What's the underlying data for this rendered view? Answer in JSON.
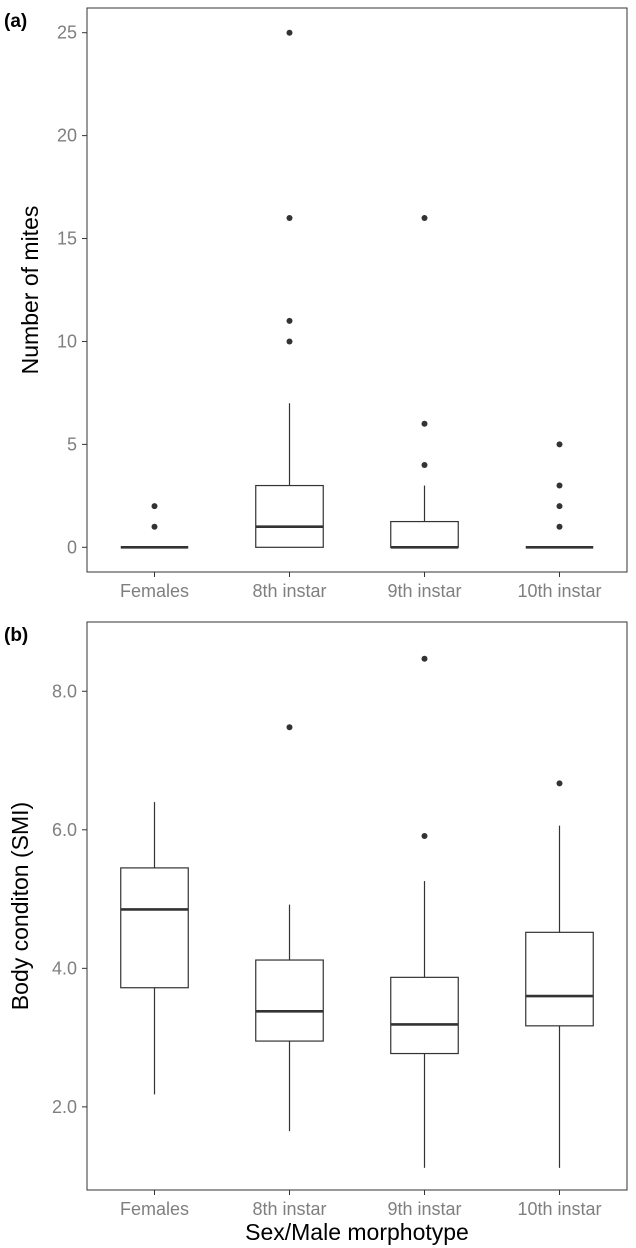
{
  "chart_data": [
    {
      "panel": "(a)",
      "type": "box",
      "ylabel": "Number of mites",
      "xlabel": "",
      "categories": [
        "Females",
        "8th instar",
        "9th instar",
        "10th instar"
      ],
      "ylim": [
        -1.2,
        26.2
      ],
      "yticks": [
        0,
        5,
        10,
        15,
        20,
        25
      ],
      "ytick_labels": [
        "0",
        "5",
        "10",
        "15",
        "20",
        "25"
      ],
      "boxes": [
        {
          "category": "Females",
          "q1": 0,
          "median": 0,
          "q3": 0,
          "whisker_low": 0,
          "whisker_high": 0,
          "outliers": [
            1,
            2
          ]
        },
        {
          "category": "8th instar",
          "q1": 0,
          "median": 1,
          "q3": 3,
          "whisker_low": 0,
          "whisker_high": 7,
          "outliers": [
            10,
            11,
            16,
            25
          ]
        },
        {
          "category": "9th instar",
          "q1": 0,
          "median": 0,
          "q3": 1.25,
          "whisker_low": 0,
          "whisker_high": 3,
          "outliers": [
            4,
            6,
            16
          ]
        },
        {
          "category": "10th instar",
          "q1": 0,
          "median": 0,
          "q3": 0,
          "whisker_low": 0,
          "whisker_high": 0,
          "outliers": [
            1,
            2,
            3,
            5
          ]
        }
      ],
      "grid": false
    },
    {
      "panel": "(b)",
      "type": "box",
      "ylabel": "Body conditon (SMI)",
      "xlabel": "Sex/Male morphotype",
      "categories": [
        "Females",
        "8th instar",
        "9th instar",
        "10th instar"
      ],
      "ylim": [
        0.8,
        9.0
      ],
      "yticks": [
        2,
        4,
        6,
        8
      ],
      "ytick_labels": [
        "2.0",
        "4.0",
        "6.0",
        "8.0"
      ],
      "boxes": [
        {
          "category": "Females",
          "q1": 3.72,
          "median": 4.85,
          "q3": 5.45,
          "whisker_low": 2.18,
          "whisker_high": 6.4,
          "outliers": []
        },
        {
          "category": "8th instar",
          "q1": 2.95,
          "median": 3.38,
          "q3": 4.12,
          "whisker_low": 1.65,
          "whisker_high": 4.92,
          "outliers": [
            7.48
          ]
        },
        {
          "category": "9th instar",
          "q1": 2.77,
          "median": 3.19,
          "q3": 3.87,
          "whisker_low": 1.12,
          "whisker_high": 5.26,
          "outliers": [
            5.91,
            8.47
          ]
        },
        {
          "category": "10th instar",
          "q1": 3.17,
          "median": 3.6,
          "q3": 4.52,
          "whisker_low": 1.12,
          "whisker_high": 6.06,
          "outliers": [
            6.67
          ]
        }
      ],
      "grid": false
    }
  ]
}
